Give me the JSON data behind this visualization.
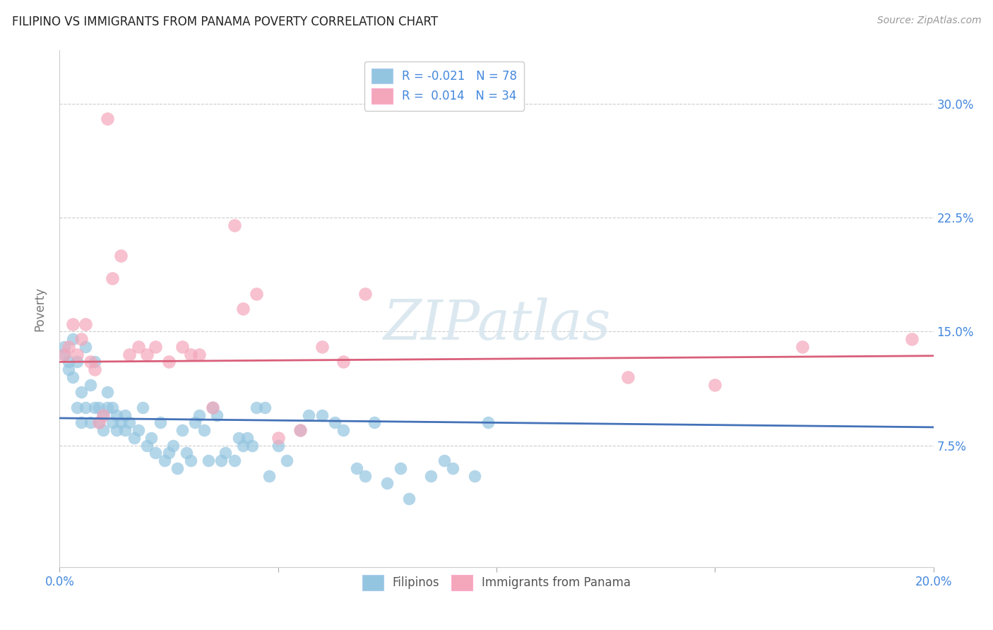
{
  "title": "FILIPINO VS IMMIGRANTS FROM PANAMA POVERTY CORRELATION CHART",
  "source": "Source: ZipAtlas.com",
  "ylabel": "Poverty",
  "y_ticks": [
    0.075,
    0.15,
    0.225,
    0.3
  ],
  "y_tick_labels": [
    "7.5%",
    "15.0%",
    "22.5%",
    "30.0%"
  ],
  "xlim": [
    0.0,
    0.2
  ],
  "ylim": [
    -0.005,
    0.335
  ],
  "r_filipino": -0.021,
  "n_filipino": 78,
  "r_panama": 0.014,
  "n_panama": 34,
  "color_filipino": "#94c5e0",
  "color_panama": "#f4a7bb",
  "color_line_filipino": "#4472b8",
  "color_line_panama": "#d95f7a",
  "watermark": "ZIPatlas",
  "watermark_color": "#dce8f0",
  "background_color": "#ffffff",
  "legend_label_filipino": "Filipinos",
  "legend_label_panama": "Immigrants from Panama",
  "filipino_x": [
    0.001,
    0.001,
    0.002,
    0.002,
    0.003,
    0.003,
    0.004,
    0.004,
    0.005,
    0.005,
    0.006,
    0.006,
    0.007,
    0.007,
    0.008,
    0.008,
    0.009,
    0.009,
    0.01,
    0.01,
    0.011,
    0.011,
    0.012,
    0.012,
    0.013,
    0.013,
    0.014,
    0.015,
    0.015,
    0.016,
    0.017,
    0.018,
    0.019,
    0.02,
    0.021,
    0.022,
    0.023,
    0.024,
    0.025,
    0.026,
    0.027,
    0.028,
    0.029,
    0.03,
    0.031,
    0.032,
    0.033,
    0.034,
    0.035,
    0.036,
    0.037,
    0.038,
    0.04,
    0.041,
    0.042,
    0.043,
    0.044,
    0.045,
    0.047,
    0.048,
    0.05,
    0.052,
    0.055,
    0.057,
    0.06,
    0.063,
    0.065,
    0.068,
    0.07,
    0.072,
    0.075,
    0.078,
    0.08,
    0.085,
    0.088,
    0.09,
    0.095,
    0.098
  ],
  "filipino_y": [
    0.135,
    0.14,
    0.13,
    0.125,
    0.12,
    0.145,
    0.1,
    0.13,
    0.09,
    0.11,
    0.1,
    0.14,
    0.09,
    0.115,
    0.13,
    0.1,
    0.09,
    0.1,
    0.085,
    0.095,
    0.1,
    0.11,
    0.1,
    0.09,
    0.095,
    0.085,
    0.09,
    0.085,
    0.095,
    0.09,
    0.08,
    0.085,
    0.1,
    0.075,
    0.08,
    0.07,
    0.09,
    0.065,
    0.07,
    0.075,
    0.06,
    0.085,
    0.07,
    0.065,
    0.09,
    0.095,
    0.085,
    0.065,
    0.1,
    0.095,
    0.065,
    0.07,
    0.065,
    0.08,
    0.075,
    0.08,
    0.075,
    0.1,
    0.1,
    0.055,
    0.075,
    0.065,
    0.085,
    0.095,
    0.095,
    0.09,
    0.085,
    0.06,
    0.055,
    0.09,
    0.05,
    0.06,
    0.04,
    0.055,
    0.065,
    0.06,
    0.055,
    0.09
  ],
  "panama_x": [
    0.001,
    0.002,
    0.003,
    0.004,
    0.005,
    0.006,
    0.007,
    0.008,
    0.009,
    0.01,
    0.011,
    0.012,
    0.014,
    0.016,
    0.018,
    0.02,
    0.022,
    0.025,
    0.028,
    0.03,
    0.032,
    0.035,
    0.04,
    0.042,
    0.045,
    0.05,
    0.055,
    0.06,
    0.065,
    0.07,
    0.13,
    0.15,
    0.17,
    0.195
  ],
  "panama_y": [
    0.135,
    0.14,
    0.155,
    0.135,
    0.145,
    0.155,
    0.13,
    0.125,
    0.09,
    0.095,
    0.29,
    0.185,
    0.2,
    0.135,
    0.14,
    0.135,
    0.14,
    0.13,
    0.14,
    0.135,
    0.135,
    0.1,
    0.22,
    0.165,
    0.175,
    0.08,
    0.085,
    0.14,
    0.13,
    0.175,
    0.12,
    0.115,
    0.14,
    0.145
  ],
  "line_filipino_x0": 0.0,
  "line_filipino_x1": 0.2,
  "line_filipino_y0": 0.093,
  "line_filipino_y1": 0.087,
  "line_panama_x0": 0.0,
  "line_panama_x1": 0.2,
  "line_panama_y0": 0.13,
  "line_panama_y1": 0.134
}
